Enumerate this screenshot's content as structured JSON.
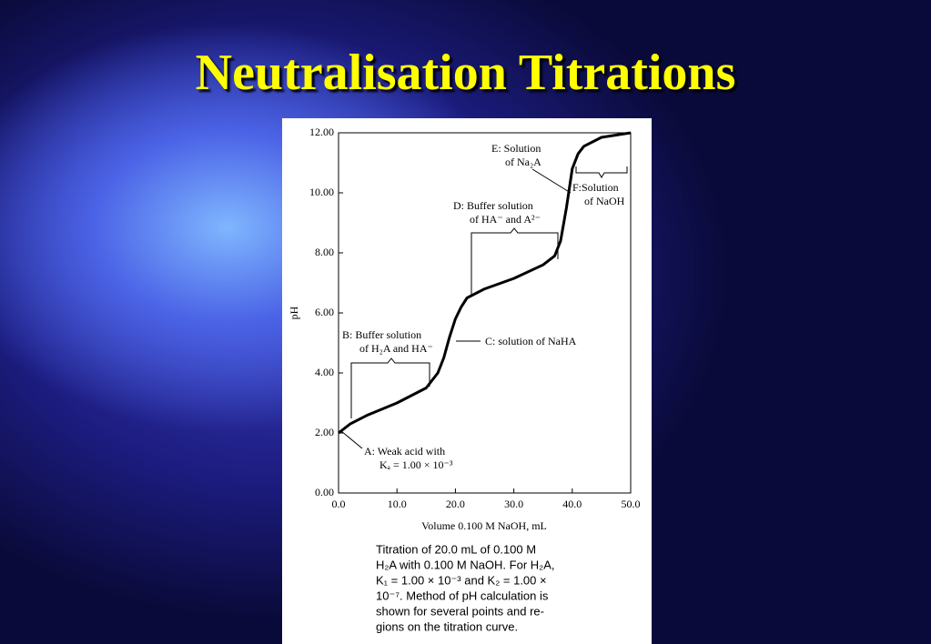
{
  "slide_title": "Neutralisation Titrations",
  "chart_data": {
    "type": "line",
    "x_label": "Volume 0.100 M NaOH, mL",
    "y_label": "pH",
    "x": [
      0,
      2,
      5,
      10,
      15,
      17,
      18,
      19,
      20,
      21,
      22,
      25,
      30,
      35,
      37,
      38,
      39,
      40,
      41,
      42,
      45,
      50
    ],
    "series": [
      {
        "name": "pH",
        "color": "#000000",
        "values": [
          2.0,
          2.3,
          2.6,
          3.0,
          3.5,
          4.0,
          4.5,
          5.2,
          5.8,
          6.2,
          6.5,
          6.8,
          7.15,
          7.6,
          7.9,
          8.4,
          9.5,
          10.8,
          11.3,
          11.55,
          11.85,
          12.0
        ]
      }
    ],
    "xlim": [
      0,
      50
    ],
    "ylim": [
      0,
      12
    ],
    "xticks": [
      {
        "value": 0,
        "label": "0.0"
      },
      {
        "value": 10,
        "label": "10.0"
      },
      {
        "value": 20,
        "label": "20.0"
      },
      {
        "value": 30,
        "label": "30.0"
      },
      {
        "value": 40,
        "label": "40.0"
      },
      {
        "value": 50,
        "label": "50.0"
      }
    ],
    "yticks": [
      {
        "value": 0,
        "label": "0.00"
      },
      {
        "value": 2,
        "label": "2.00"
      },
      {
        "value": 4,
        "label": "4.00"
      },
      {
        "value": 6,
        "label": "6.00"
      },
      {
        "value": 8,
        "label": "8.00"
      },
      {
        "value": 10,
        "label": "10.00"
      },
      {
        "value": 12,
        "label": "12.00"
      }
    ],
    "annotations": [
      "E: Solution",
      "of Na₂A",
      "F:Solution",
      "of NaOH",
      "D: Buffer solution",
      "of HA⁻ and A²⁻",
      "B: Buffer solution",
      "of H₂A and HA⁻",
      "C: solution of NaHA",
      "A: Weak acid with",
      "Kₐ = 1.00 × 10⁻³"
    ],
    "caption": [
      "Titration of 20.0 mL of 0.100 M",
      "H₂A with 0.100 M NaOH. For H₂A,",
      "K₁ = 1.00 × 10⁻³ and K₂ = 1.00 ×",
      "10⁻⁷. Method of pH calculation is",
      "shown for several points and re-",
      "gions on the titration curve."
    ]
  }
}
